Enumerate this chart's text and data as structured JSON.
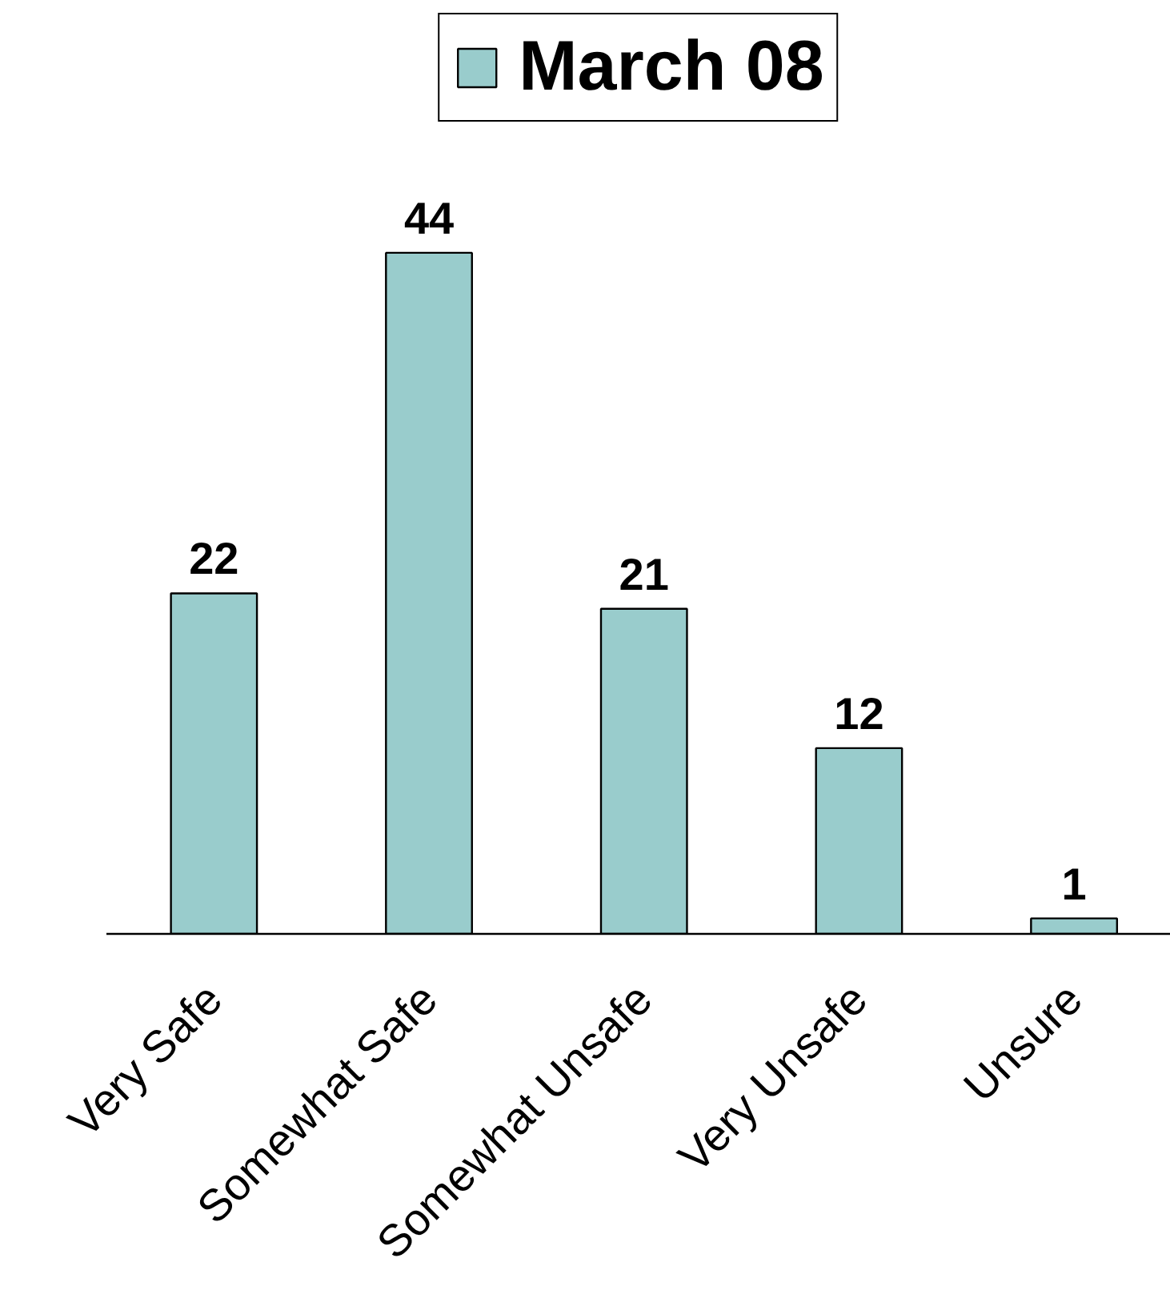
{
  "chart_data": {
    "type": "bar",
    "categories": [
      "Very Safe",
      "Somewhat Safe",
      "Somewhat Unsafe",
      "Very Unsafe",
      "Unsure"
    ],
    "series": [
      {
        "name": "March 08",
        "color": "#99cccc",
        "values": [
          22,
          44,
          21,
          12,
          1
        ]
      }
    ],
    "data_labels": true,
    "legend": "top"
  }
}
